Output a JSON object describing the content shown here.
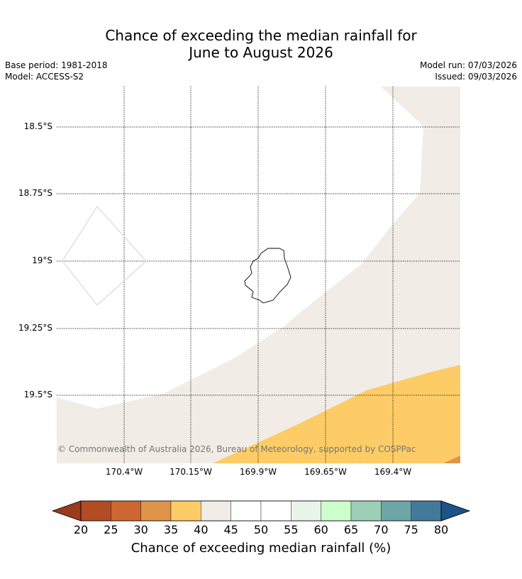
{
  "title": {
    "line1": "Chance of exceeding the median rainfall for",
    "line2": "June to August 2026"
  },
  "meta": {
    "base_period": "Base period: 1981-2018",
    "model": "Model: ACCESS-S2",
    "model_run": "Model run: 07/03/2026",
    "issued": "Issued: 09/03/2026"
  },
  "map": {
    "lat_labels": [
      "18.5°S",
      "18.75°S",
      "19°S",
      "19.25°S",
      "19.5°S"
    ],
    "lon_labels": [
      "170.4°W",
      "170.15°W",
      "169.9°W",
      "169.65°W",
      "169.4°W"
    ],
    "copyright": "© Commonwealth of Australia 2026, Bureau of Meteorology, supported by COSPPac",
    "colors": {
      "band_40_45": "#f1ece6",
      "band_45_55": "#ffffff",
      "band_35_40": "#fdcc66",
      "band_30_35": "#e0944a"
    }
  },
  "colorbar": {
    "label": "Chance of exceeding median rainfall (%)",
    "ticks": [
      "20",
      "25",
      "30",
      "35",
      "40",
      "45",
      "50",
      "55",
      "60",
      "65",
      "70",
      "75",
      "80"
    ],
    "colors": [
      "#b14c25",
      "#cc6731",
      "#e0944a",
      "#fdcc66",
      "#f1ece6",
      "#ffffff",
      "#ffffff",
      "#eaf5e9",
      "#ccffcc",
      "#9dcfb7",
      "#6ea5a7",
      "#43799b"
    ],
    "under_color": "#9a3b1e",
    "over_color": "#1a5488"
  }
}
